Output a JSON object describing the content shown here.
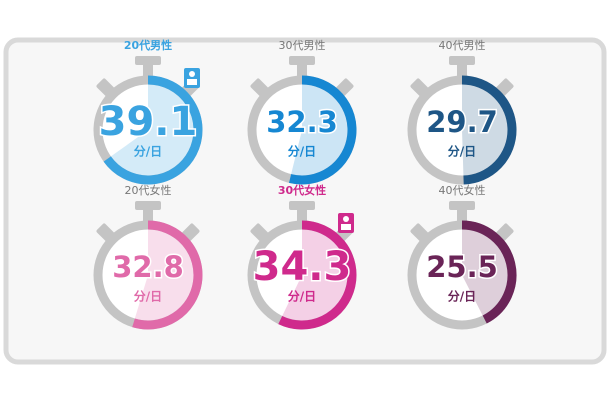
{
  "chart_data": {
    "type": "gauge",
    "range": [
      0,
      60
    ],
    "unit": "分/日",
    "items": [
      {
        "label": "20代男性",
        "value": 39.1,
        "color": "#3aa3e0",
        "highlight": true
      },
      {
        "label": "30代男性",
        "value": 32.3,
        "color": "#1687d2",
        "highlight": false
      },
      {
        "label": "40代男性",
        "value": 29.7,
        "color": "#1e5686",
        "highlight": false
      },
      {
        "label": "20代女性",
        "value": 32.8,
        "color": "#e06aa9",
        "highlight": false
      },
      {
        "label": "30代女性",
        "value": 34.3,
        "color": "#cf2a8c",
        "highlight": true
      },
      {
        "label": "40代女性",
        "value": 25.5,
        "color": "#6a2457",
        "highlight": false
      }
    ]
  }
}
